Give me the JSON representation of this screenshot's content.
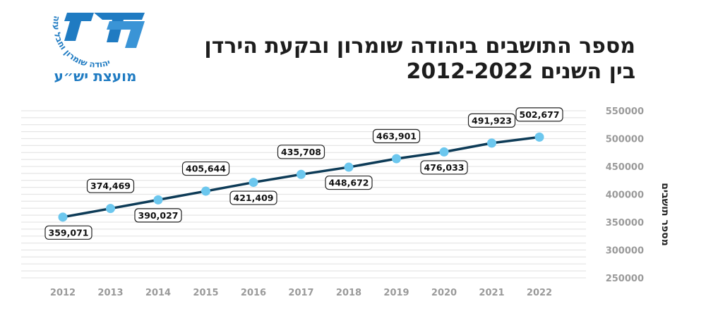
{
  "logo": {
    "caption": "מועצת יש״ע",
    "ring_text": "יהודה שומרון וחבל עזה",
    "color": "#1f7bc2"
  },
  "title_line1": "מספר התושבים ביהודה שומרון ובקעת הירדן",
  "title_line2": "בין השנים 2012-2022",
  "chart_data": {
    "type": "line",
    "title": "מספר התושבים ביהודה שומרון ובקעת הירדן בין השנים 2012-2022",
    "ylabel": "מספר תושבים",
    "xlabel": "",
    "categories": [
      "2012",
      "2013",
      "2014",
      "2015",
      "2016",
      "2017",
      "2018",
      "2019",
      "2020",
      "2021",
      "2022"
    ],
    "values": [
      359071,
      374469,
      390027,
      405644,
      421409,
      435708,
      448672,
      463901,
      476033,
      491923,
      502677
    ],
    "data_labels": [
      "359,071",
      "374,469",
      "390,027",
      "405,644",
      "421,409",
      "435,708",
      "448,672",
      "463,901",
      "476,033",
      "491,923",
      "502,677"
    ],
    "ylim": [
      250000,
      550000
    ],
    "yticks": [
      "250000",
      "300000",
      "350000",
      "400000",
      "450000",
      "500000",
      "550000"
    ],
    "grid": true,
    "line_color": "#0d3b57",
    "marker_color": "#6cc7ee",
    "grid_color": "#e6e6e6"
  }
}
